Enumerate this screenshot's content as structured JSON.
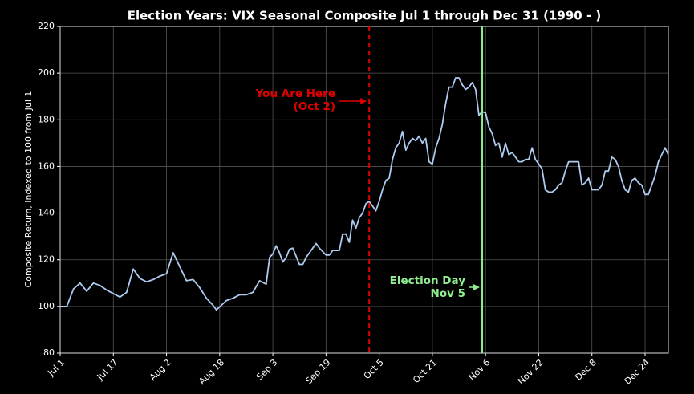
{
  "chart_data": {
    "type": "line",
    "title": "Election Years: VIX Seasonal Composite Jul 1 through Dec 31 (1990 - )",
    "y_label": "Composite Return, Indexed to 100 from Jul 1",
    "color": "#aecbf0",
    "x": [
      0,
      2,
      4,
      6,
      8,
      10,
      12,
      14,
      16,
      18,
      20,
      22,
      24,
      26,
      28,
      30,
      32,
      34,
      36,
      38,
      40,
      42,
      44,
      46,
      47,
      50,
      52,
      54,
      56,
      58,
      60,
      62,
      63,
      64,
      65,
      66,
      67,
      68,
      69,
      70,
      71,
      72,
      73,
      74,
      75,
      76,
      77,
      78,
      79,
      80,
      81,
      82,
      83,
      84,
      85,
      86,
      87,
      88,
      89,
      90,
      91,
      92,
      93,
      94,
      95,
      96,
      97,
      98,
      99,
      100,
      101,
      102,
      103,
      104,
      105,
      106,
      107,
      108,
      109,
      110,
      111,
      112,
      113,
      114,
      115,
      116,
      117,
      118,
      119,
      120,
      121,
      122,
      123,
      124,
      125,
      126,
      127,
      128,
      129,
      130,
      131,
      132,
      133,
      134,
      135,
      136,
      137,
      138,
      139,
      140,
      141,
      142,
      143,
      144,
      145,
      146,
      147,
      148,
      149,
      150,
      151,
      152,
      153,
      154,
      155,
      156,
      157,
      158,
      159,
      160,
      161,
      162,
      163,
      164,
      165,
      166,
      167,
      168,
      169,
      170,
      171,
      172,
      173,
      174,
      175,
      176,
      177,
      178,
      179,
      180,
      181,
      182,
      183
    ],
    "values": [
      100,
      100,
      107.5,
      110,
      106.5,
      110,
      109,
      107,
      105.5,
      104,
      106,
      116,
      112,
      110.5,
      111.5,
      113,
      114,
      123,
      117,
      111,
      111.5,
      108,
      103.5,
      100.5,
      98.5,
      102.5,
      103.5,
      105,
      105,
      106,
      111,
      109.5,
      121,
      122.5,
      126,
      123,
      119,
      121,
      124.5,
      125,
      121.5,
      118,
      118,
      121,
      123,
      125,
      127,
      125,
      123.5,
      122,
      122,
      124,
      124,
      124,
      131,
      131,
      127.5,
      137,
      133.5,
      138,
      140,
      144,
      145,
      143,
      141,
      145,
      150,
      154,
      155,
      163,
      168,
      170,
      175,
      167,
      170,
      172,
      171,
      173,
      170,
      172,
      162,
      161,
      168,
      172,
      178,
      187,
      194,
      194,
      198,
      198,
      195,
      193,
      194,
      196,
      193,
      182,
      183.5,
      183,
      177,
      174,
      169,
      170,
      164,
      170,
      165,
      166,
      164,
      162,
      162,
      163,
      163,
      168,
      163,
      161,
      159,
      150,
      149,
      149,
      150,
      152,
      153,
      158,
      162,
      162,
      162,
      162,
      152,
      153,
      155,
      150,
      150,
      150,
      152,
      158,
      158,
      164,
      163,
      160,
      154,
      150,
      149,
      154,
      155,
      153,
      152,
      148,
      148,
      152,
      156,
      162,
      165,
      168,
      165
    ],
    "xlim": [
      0,
      183
    ],
    "xticks": [
      {
        "value": 0,
        "label": "Jul 1"
      },
      {
        "value": 16,
        "label": "Jul 17"
      },
      {
        "value": 32,
        "label": "Aug 2"
      },
      {
        "value": 48,
        "label": "Aug 18"
      },
      {
        "value": 64,
        "label": "Sep 3"
      },
      {
        "value": 80,
        "label": "Sep 19"
      },
      {
        "value": 96,
        "label": "Oct 5"
      },
      {
        "value": 112,
        "label": "Oct 21"
      },
      {
        "value": 128,
        "label": "Nov 6"
      },
      {
        "value": 144,
        "label": "Nov 22"
      },
      {
        "value": 160,
        "label": "Dec 8"
      },
      {
        "value": 176,
        "label": "Dec 24"
      }
    ],
    "ylim": [
      80,
      220
    ],
    "yticks": [
      80,
      100,
      120,
      140,
      160,
      180,
      200,
      220
    ],
    "grid": true,
    "vlines": [
      {
        "x": 93,
        "color": "#e00000",
        "style": "dashed",
        "label": [
          "You Are Here",
          "(Oct 2)"
        ]
      },
      {
        "x": 127,
        "color": "#90ee90",
        "style": "solid",
        "label": [
          "Election Day",
          "Nov 5"
        ]
      }
    ]
  }
}
